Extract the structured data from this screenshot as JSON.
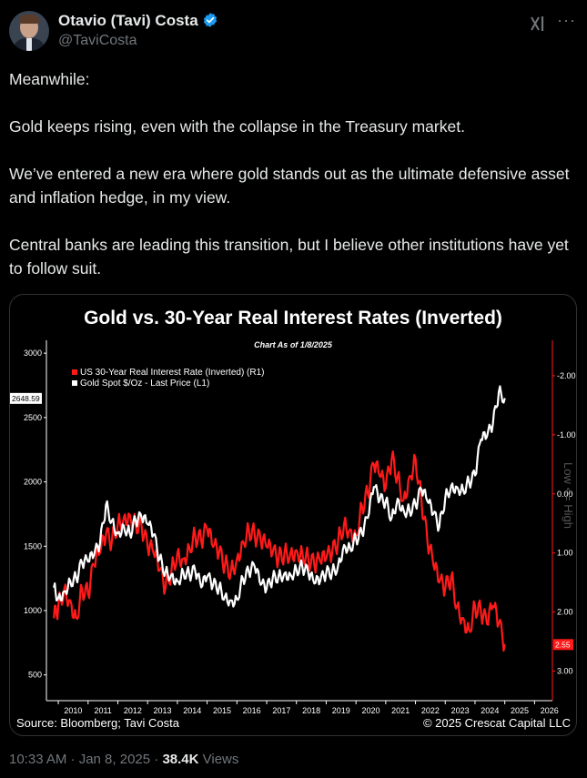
{
  "tweet": {
    "author_name": "Otavio (Tavi) Costa",
    "handle": "@TaviCosta",
    "paragraphs": [
      "Meanwhile:",
      "Gold keeps rising, even with the collapse in the Treasury market.",
      "We’ve entered a new era where gold stands out as the ultimate defensive asset and inflation hedge, in my view.",
      "Central banks are leading this transition, but I believe other institutions have yet to follow suit."
    ],
    "timestamp": "10:33 AM · Jan 8, 2025 · ",
    "views_count": "38.4K",
    "views_label": " Views",
    "icons": {
      "verified": "verified-badge-icon",
      "grok": "grok-icon",
      "more": "more-options-icon"
    },
    "colors": {
      "verified": "#1d9bf0",
      "muted": "#71767b"
    }
  },
  "chart_data": {
    "type": "line",
    "title": "Gold vs. 30-Year Real Interest Rates (Inverted)",
    "subtitle": "Chart As of 1/8/2025",
    "source": "Source: Bloomberg; Tavi Costa",
    "copyright": "© 2025 Crescat Capital LLC",
    "right_axis_label": "Low <= High",
    "left_last_value_label": "2648.59",
    "right_last_value_label": "2.55",
    "x_ticks": [
      "2010",
      "2011",
      "2012",
      "2013",
      "2014",
      "2015",
      "2016",
      "2017",
      "2018",
      "2019",
      "2020",
      "2021",
      "2022",
      "2023",
      "2024",
      "2025",
      "2026"
    ],
    "y_left_ticks": [
      {
        "label": "3000",
        "value": 3000
      },
      {
        "label": "2500",
        "value": 2500
      },
      {
        "label": "2000",
        "value": 2000
      },
      {
        "label": "1500",
        "value": 1500
      },
      {
        "label": "1000",
        "value": 1000
      },
      {
        "label": "500",
        "value": 500
      }
    ],
    "y_right_ticks": [
      {
        "label": "-2.00",
        "value": -2
      },
      {
        "label": "-1.00",
        "value": -1
      },
      {
        "label": "0.00",
        "value": 0
      },
      {
        "label": "1.00",
        "value": 1
      },
      {
        "label": "2.00",
        "value": 2
      },
      {
        "label": "3.00",
        "value": 3
      }
    ],
    "ylim_left": [
      300,
      3100
    ],
    "ylim_right_inverted": [
      3.5,
      -2.6
    ],
    "xlim": [
      2009.6,
      2026.6
    ],
    "series": [
      {
        "name": "US 30-Year Real Interest Rate (Inverted) (R1)",
        "axis": "right",
        "color": "#ff1a1a",
        "x": [
          2009.85,
          2010.0,
          2010.2,
          2010.4,
          2010.6,
          2010.8,
          2011.0,
          2011.2,
          2011.4,
          2011.6,
          2011.8,
          2012.0,
          2012.2,
          2012.4,
          2012.6,
          2012.8,
          2013.0,
          2013.2,
          2013.4,
          2013.6,
          2013.8,
          2014.0,
          2014.2,
          2014.4,
          2014.6,
          2014.8,
          2015.0,
          2015.2,
          2015.4,
          2015.6,
          2015.8,
          2016.0,
          2016.2,
          2016.4,
          2016.6,
          2016.8,
          2017.0,
          2017.2,
          2017.4,
          2017.6,
          2017.8,
          2018.0,
          2018.2,
          2018.4,
          2018.6,
          2018.8,
          2019.0,
          2019.2,
          2019.4,
          2019.6,
          2019.8,
          2020.0,
          2020.2,
          2020.4,
          2020.6,
          2020.8,
          2021.0,
          2021.2,
          2021.4,
          2021.6,
          2021.8,
          2022.0,
          2022.2,
          2022.4,
          2022.6,
          2022.8,
          2023.0,
          2023.2,
          2023.4,
          2023.6,
          2023.8,
          2024.0,
          2024.2,
          2024.4,
          2024.6,
          2024.8,
          2025.0
        ],
        "values": [
          2.1,
          1.9,
          1.6,
          1.8,
          2.1,
          1.6,
          1.7,
          1.2,
          1.0,
          0.7,
          0.8,
          0.5,
          0.4,
          0.35,
          0.5,
          0.55,
          0.9,
          1.0,
          1.3,
          1.6,
          1.3,
          1.0,
          1.1,
          0.9,
          0.7,
          0.8,
          0.6,
          0.9,
          1.0,
          1.2,
          1.3,
          1.1,
          0.8,
          0.6,
          0.7,
          0.8,
          0.9,
          1.0,
          1.1,
          1.0,
          1.0,
          0.95,
          1.0,
          1.1,
          1.2,
          1.15,
          1.1,
          1.0,
          0.8,
          0.5,
          0.6,
          0.7,
          0.2,
          0.0,
          -0.5,
          -0.3,
          -0.1,
          -0.6,
          -0.3,
          0.1,
          -0.3,
          -0.6,
          0.1,
          0.8,
          1.2,
          1.5,
          1.6,
          1.4,
          1.9,
          2.1,
          2.3,
          1.9,
          2.0,
          2.2,
          1.9,
          2.2,
          2.55
        ]
      },
      {
        "name": "Gold Spot $/Oz - Last Price (L1)",
        "axis": "left",
        "color": "#ffffff",
        "x": [
          2009.85,
          2010.0,
          2010.2,
          2010.4,
          2010.6,
          2010.8,
          2011.0,
          2011.2,
          2011.4,
          2011.6,
          2011.8,
          2012.0,
          2012.2,
          2012.4,
          2012.6,
          2012.8,
          2013.0,
          2013.2,
          2013.4,
          2013.6,
          2013.8,
          2014.0,
          2014.2,
          2014.4,
          2014.6,
          2014.8,
          2015.0,
          2015.2,
          2015.4,
          2015.6,
          2015.8,
          2016.0,
          2016.2,
          2016.4,
          2016.6,
          2016.8,
          2017.0,
          2017.2,
          2017.4,
          2017.6,
          2017.8,
          2018.0,
          2018.2,
          2018.4,
          2018.6,
          2018.8,
          2019.0,
          2019.2,
          2019.4,
          2019.6,
          2019.8,
          2020.0,
          2020.2,
          2020.4,
          2020.6,
          2020.8,
          2021.0,
          2021.2,
          2021.4,
          2021.6,
          2021.8,
          2022.0,
          2022.2,
          2022.4,
          2022.6,
          2022.8,
          2023.0,
          2023.2,
          2023.4,
          2023.6,
          2023.8,
          2024.0,
          2024.2,
          2024.4,
          2024.6,
          2024.8,
          2025.0
        ],
        "values": [
          1180,
          1100,
          1150,
          1230,
          1250,
          1370,
          1380,
          1430,
          1520,
          1820,
          1700,
          1600,
          1660,
          1600,
          1700,
          1720,
          1670,
          1590,
          1400,
          1300,
          1280,
          1230,
          1300,
          1280,
          1310,
          1180,
          1260,
          1200,
          1180,
          1110,
          1080,
          1090,
          1250,
          1300,
          1340,
          1200,
          1170,
          1250,
          1270,
          1290,
          1280,
          1320,
          1340,
          1290,
          1210,
          1230,
          1290,
          1300,
          1350,
          1510,
          1490,
          1560,
          1600,
          1720,
          1960,
          1860,
          1850,
          1720,
          1870,
          1780,
          1780,
          1820,
          1940,
          1850,
          1750,
          1650,
          1880,
          1970,
          1960,
          1940,
          2000,
          2050,
          2330,
          2350,
          2450,
          2700,
          2648.59
        ]
      }
    ],
    "legend_position": "top-left",
    "grid": false
  }
}
